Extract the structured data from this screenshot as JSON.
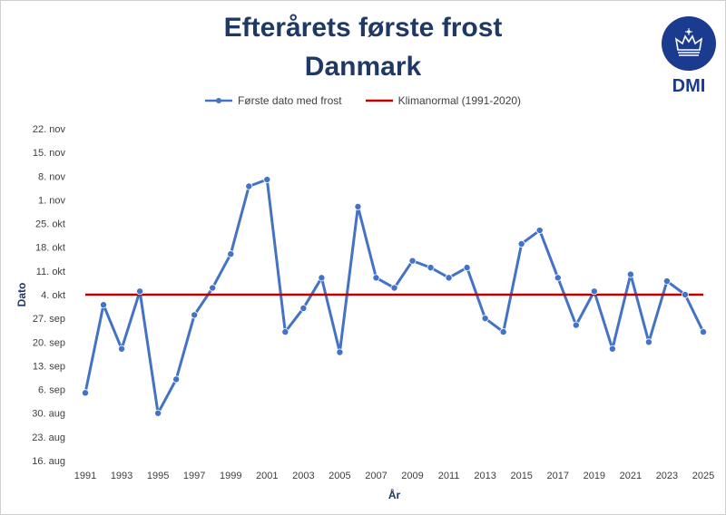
{
  "chart_data": {
    "type": "line",
    "title": "Efterårets første frost",
    "subtitle": "Danmark",
    "xlabel": "År",
    "ylabel": "Dato",
    "x_tick_labels": [
      "1991",
      "1993",
      "1995",
      "1997",
      "1999",
      "2001",
      "2003",
      "2005",
      "2007",
      "2009",
      "2011",
      "2013",
      "2015",
      "2017",
      "2019",
      "2021",
      "2023",
      "2025"
    ],
    "y_tick_labels": [
      "16. aug",
      "23. aug",
      "30. aug",
      "6. sep",
      "13. sep",
      "20. sep",
      "27. sep",
      "4. okt",
      "11. okt",
      "18. okt",
      "25. okt",
      "1. nov",
      "8. nov",
      "15. nov",
      "22. nov"
    ],
    "y_ticks_day_of_year": [
      228,
      235,
      242,
      249,
      256,
      263,
      270,
      277,
      284,
      291,
      298,
      305,
      312,
      319,
      326
    ],
    "ylim_day_of_year": [
      228,
      326
    ],
    "xlim": [
      1991,
      2025
    ],
    "grid": false,
    "legend_position": "top",
    "series": [
      {
        "name": "Første dato med frost",
        "style": "line-markers",
        "color": "#4472c4",
        "x": [
          1991,
          1992,
          1993,
          1994,
          1995,
          1996,
          1997,
          1998,
          1999,
          2000,
          2001,
          2002,
          2003,
          2004,
          2005,
          2006,
          2007,
          2008,
          2009,
          2010,
          2011,
          2012,
          2013,
          2014,
          2015,
          2016,
          2017,
          2018,
          2019,
          2020,
          2021,
          2022,
          2023,
          2024,
          2025
        ],
        "y_day_of_year": [
          248,
          274,
          261,
          278,
          242,
          252,
          271,
          279,
          289,
          309,
          311,
          266,
          273,
          282,
          260,
          303,
          282,
          279,
          287,
          285,
          282,
          285,
          270,
          266,
          292,
          296,
          282,
          268,
          278,
          261,
          283,
          263,
          281,
          277,
          266
        ],
        "y": [
          "5. sep",
          "1. okt",
          "18. sep",
          "5. okt",
          "30. aug",
          "9. sep",
          "28. sep",
          "6. okt",
          "16. okt",
          "5. nov",
          "7. nov",
          "23. sep",
          "30. sep",
          "9. okt",
          "17. sep",
          "30. okt",
          "9. okt",
          "6. okt",
          "14. okt",
          "12. okt",
          "9. okt",
          "12. okt",
          "27. sep",
          "23. sep",
          "19. okt",
          "23. okt",
          "9. okt",
          "25. sep",
          "5. okt",
          "18. sep",
          "10. okt",
          "20. sep",
          "8. okt",
          "4. okt",
          "23. sep"
        ]
      },
      {
        "name": "Klimanormal (1991-2020)",
        "style": "line",
        "color": "#c00000",
        "y_day_of_year": 277,
        "y": "4. okt"
      }
    ]
  },
  "logo": {
    "text": "DMI"
  }
}
